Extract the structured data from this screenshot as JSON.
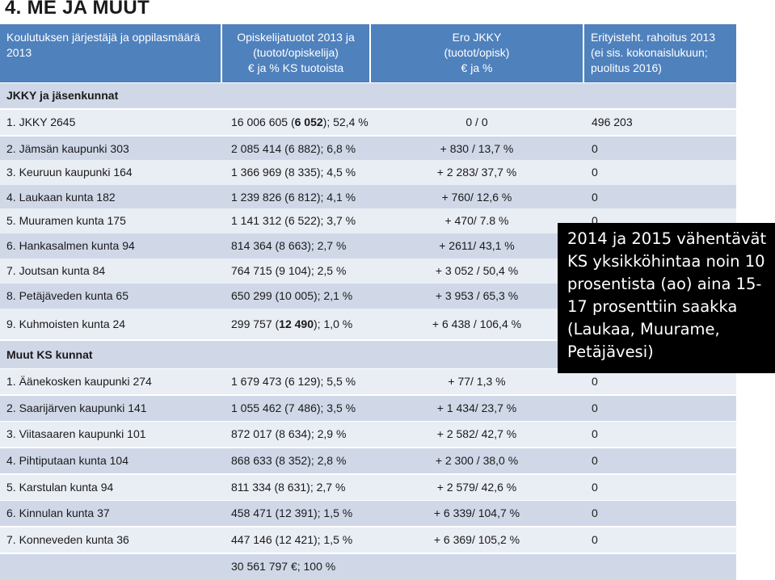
{
  "title": "4. ME JA MUUT",
  "header": {
    "col1": [
      "Koulutuksen järjestäjä ja oppilasmäärä",
      "2013"
    ],
    "col2": [
      "Opiskelijatuotot  2013 ja",
      "(tuotot/opiskelija)",
      "€ ja % KS tuotoista"
    ],
    "col3": [
      "Ero JKKY",
      "(tuotot/opisk)",
      "€ ja %"
    ],
    "col4": [
      "Erityisteht. rahoitus 2013",
      "(ei sis. kokonaislukuun;",
      "puolitus 2016)"
    ]
  },
  "sections": {
    "jkky": "JKKY ja jäsenkunnat",
    "muut": "Muut KS kunnat"
  },
  "rows": [
    {
      "name": "1. JKKY 2645",
      "tuotot_a": "16 006 605 (",
      "tuotot_b": "6 052",
      "tuotot_c": "); 52,4 %",
      "ero": "0 / 0",
      "erit": "496 203"
    },
    {
      "name": "2. Jämsän kaupunki 303",
      "tuotot": "2 085 414 (6 882); 6,8 %",
      "ero": "+ 830 / 13,7 %",
      "erit": "0"
    },
    {
      "name": "3. Keuruun kaupunki  164",
      "tuotot": "1 366 969 (8 335); 4,5 %",
      "ero": "+ 2 283/ 37,7 %",
      "erit": "0"
    },
    {
      "name": "4. Laukaan kunta 182",
      "tuotot": "1 239 826 (6 812); 4,1 %",
      "ero": "+ 760/ 12,6 %",
      "erit": "0"
    },
    {
      "name": "5. Muuramen kunta 175",
      "tuotot": "1 141 312 (6 522); 3,7 %",
      "ero": "+ 470/ 7.8 %",
      "erit": "0"
    },
    {
      "name": "6. Hankasalmen kunta 94",
      "tuotot": "814 364 (8 663); 2,7 %",
      "ero": "+ 2611/ 43,1 %",
      "erit": ""
    },
    {
      "name": "7. Joutsan kunta 84",
      "tuotot": "764 715 (9 104); 2,5 %",
      "ero": "+ 3 052 / 50,4 %",
      "erit": ""
    },
    {
      "name": "8. Petäjäveden kunta 65",
      "tuotot": "650 299 (10 005); 2,1 %",
      "ero": "+ 3 953 / 65,3 %",
      "erit": ""
    },
    {
      "name": "9.  Kuhmoisten kunta 24",
      "tuotot_a": "299 757  (",
      "tuotot_b": "12 490",
      "tuotot_c": "); 1,0 %",
      "ero": "+ 6 438 / 106,4 %",
      "erit": ""
    },
    {
      "name": "1. Äänekosken kaupunki 274",
      "tuotot": "1 679 473 (6 129); 5,5 %",
      "ero": "+ 77/ 1,3 %",
      "erit": "0"
    },
    {
      "name": "2. Saarijärven kaupunki 141",
      "tuotot": "1 055 462 (7 486); 3,5 %",
      "ero": "+ 1 434/ 23,7 %",
      "erit": "0"
    },
    {
      "name": "3. Viitasaaren kaupunki 101",
      "tuotot": "872 017 (8 634); 2,9 %",
      "ero": "+ 2 582/ 42,7 %",
      "erit": "0"
    },
    {
      "name": "4. Pihtiputaan kunta  104",
      "tuotot": "868 633 (8 352); 2,8 %",
      "ero": "+ 2 300 / 38,0 %",
      "erit": "0"
    },
    {
      "name": "5. Karstulan kunta 94",
      "tuotot": "811 334 (8 631); 2,7 %",
      "ero": "+ 2 579/ 42,6 %",
      "erit": "0"
    },
    {
      "name": "6. Kinnulan kunta  37",
      "tuotot": "458 471 (12 391); 1,5 %",
      "ero": "+ 6 339/ 104,7 %",
      "erit": "0"
    },
    {
      "name": "7. Konneveden kunta 36",
      "tuotot": "447 146 (12 421); 1,5 %",
      "ero": "+ 6 369/ 105,2 %",
      "erit": "0"
    }
  ],
  "total": "30 561 797 €; 100 %",
  "overlay": [
    "2014 ja 2015 vähentävät",
    "KS yksikköhintaa noin 10",
    "prosentista (ao) aina 15-",
    "17 prosenttiin saakka",
    "(Laukaa, Muurame,",
    "Petäjävesi)"
  ]
}
